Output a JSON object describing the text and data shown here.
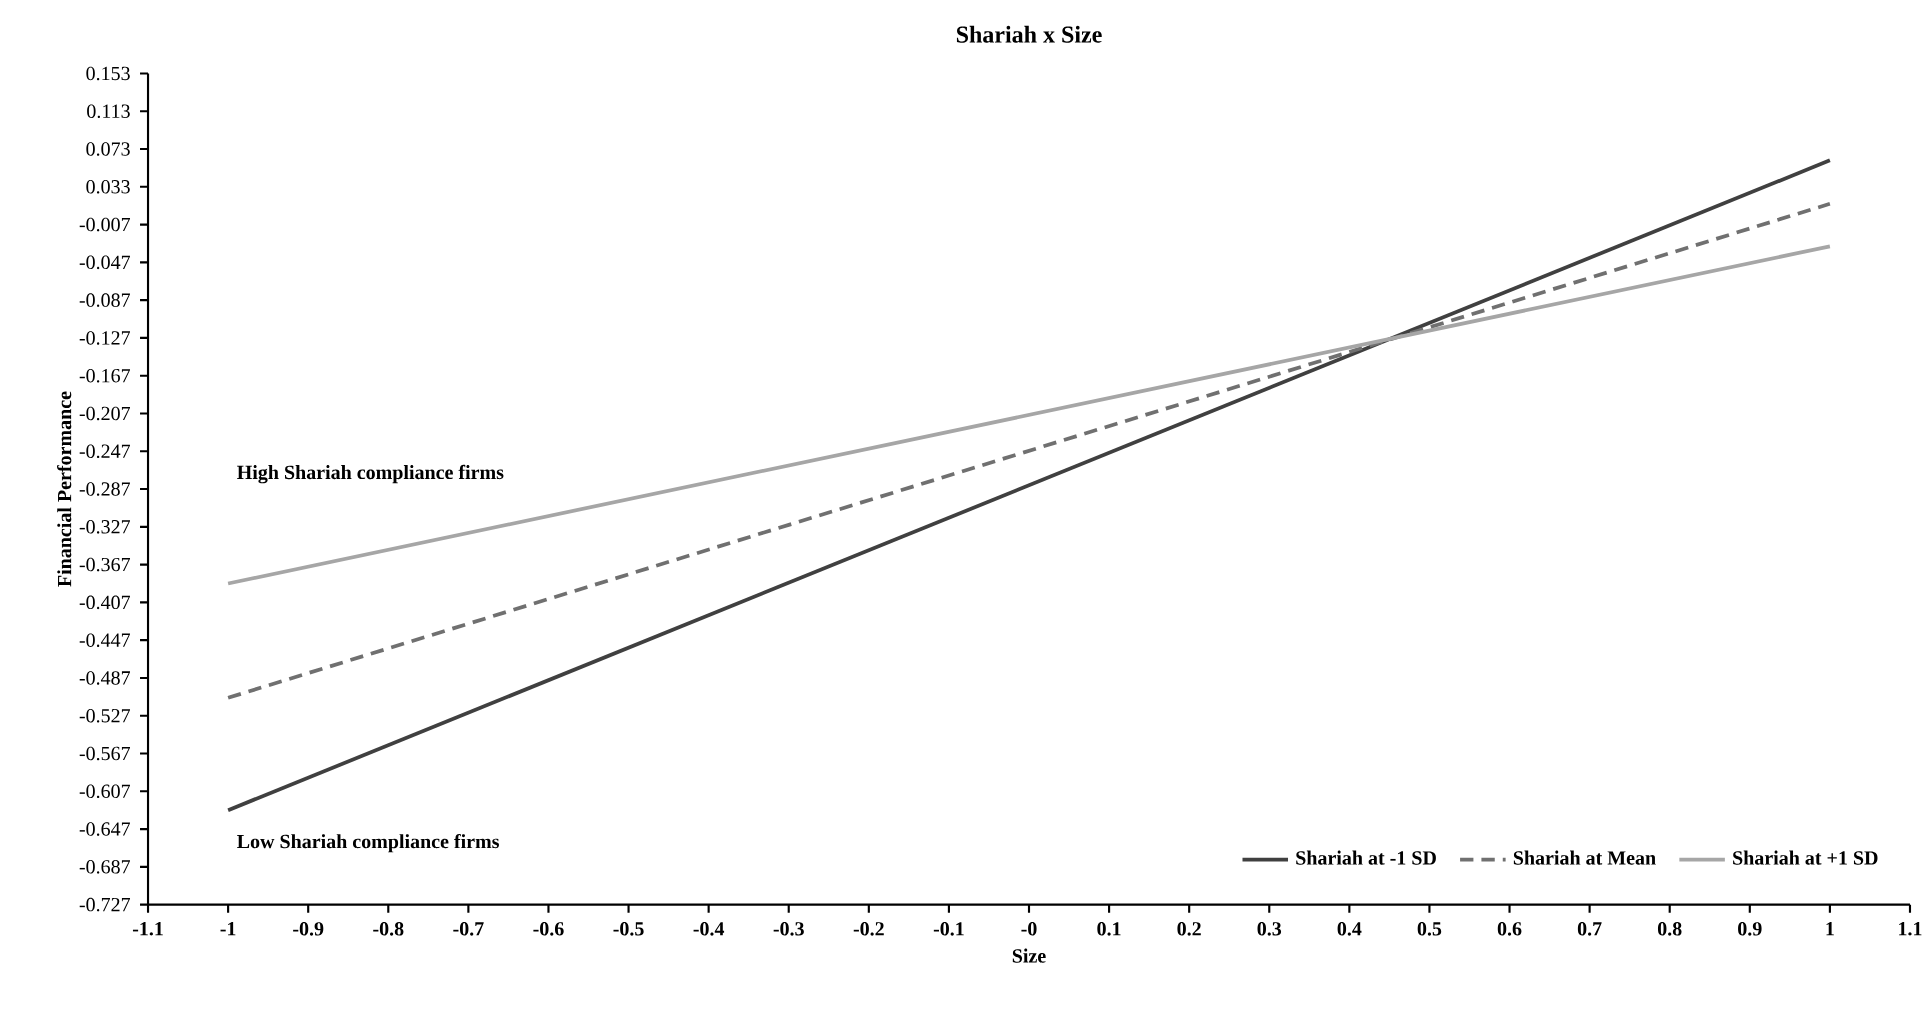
{
  "chart_data": {
    "type": "line",
    "title": "Shariah x Size",
    "xlabel": "Size",
    "ylabel": "Financial Performance",
    "x": [
      -1,
      1
    ],
    "series": [
      {
        "name": "Shariah at -1 SD",
        "color": "#404040",
        "line_style": "solid",
        "values": [
          -0.627,
          0.061
        ]
      },
      {
        "name": "Shariah at Mean",
        "color": "#707070",
        "line_style": "dashed",
        "values": [
          -0.508,
          0.015
        ]
      },
      {
        "name": "Shariah at +1 SD",
        "color": "#a6a6a6",
        "line_style": "solid",
        "values": [
          -0.387,
          -0.03
        ]
      }
    ],
    "xlim": [
      -1.1,
      1.1
    ],
    "xticks": [
      -1.1,
      -1,
      -0.9,
      -0.8,
      -0.7,
      -0.6,
      -0.5,
      -0.4,
      -0.3,
      -0.2,
      -0.1,
      {
        "value": 0,
        "label": "-0"
      },
      0.1,
      0.2,
      0.3,
      0.4,
      0.5,
      0.6,
      0.7,
      0.8,
      0.9,
      1,
      1.1
    ],
    "ylim": [
      -0.727,
      0.153
    ],
    "yticks": [
      -0.727,
      -0.687,
      -0.647,
      -0.607,
      -0.567,
      -0.527,
      -0.487,
      -0.447,
      -0.407,
      -0.367,
      -0.327,
      -0.287,
      -0.247,
      -0.207,
      -0.167,
      -0.127,
      -0.087,
      -0.047,
      -0.007,
      0.033,
      0.073,
      0.113,
      0.153
    ],
    "annotations": [
      "High Shariah compliance firms",
      "Low Shariah compliance firms"
    ],
    "legend": "bottom right",
    "grid": false,
    "marker": "none"
  }
}
